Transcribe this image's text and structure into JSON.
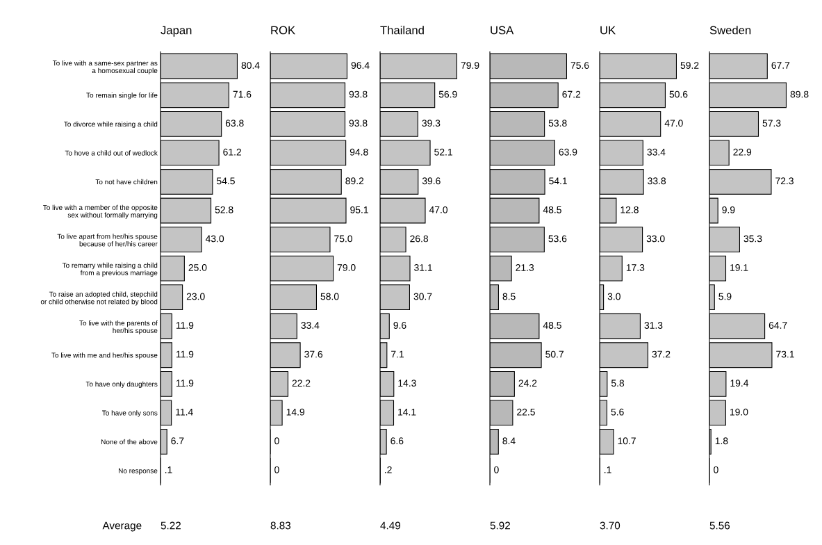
{
  "chart_data": [
    {
      "type": "bar",
      "orientation": "horizontal",
      "title": "Japan",
      "tick_labels": "y",
      "color": "#c4c4c4",
      "categories": [
        "To live with a same-sex partner as\na homosexual couple",
        "To remain single for life",
        "To divorce while raising a child",
        "To hove a child out of wedlock",
        "To not have children",
        "To live with a member of the opposite\nsex without formally marrying",
        "To live apart from her/his spouse\nbecause of her/his career",
        "To remarry while raising a child\nfrom a previous marriage",
        "To raise an adopted child, stepchild\nor child otherwise not related by blood",
        "To live with the parents of\nher/his spouse",
        "To live with me and her/his spouse",
        "To have only daughters",
        "To have only sons",
        "None of the above",
        "No response"
      ],
      "values": [
        80.4,
        71.6,
        63.8,
        61.2,
        54.5,
        52.8,
        43.0,
        25.0,
        23.0,
        11.9,
        11.9,
        11.9,
        11.4,
        6.7,
        0.1
      ],
      "value_labels": [
        "80.4",
        "71.6",
        "63.8",
        "61.2",
        "54.5",
        "52.8",
        "43.0",
        "25.0",
        "23.0",
        "11.9",
        "11.9",
        "11.9",
        "11.4",
        "6.7",
        ".1"
      ],
      "annotations": [
        "Average",
        "5.22"
      ]
    },
    {
      "type": "bar",
      "orientation": "horizontal",
      "title": "ROK",
      "tick_labels": false,
      "color": "#c4c4c4",
      "categories": [
        null,
        null,
        null,
        null,
        null,
        null,
        null,
        null,
        null,
        null,
        null,
        null,
        null,
        null,
        null
      ],
      "values": [
        96.4,
        93.8,
        93.8,
        94.8,
        89.2,
        95.1,
        75.0,
        79.0,
        58.0,
        33.4,
        37.6,
        22.2,
        14.9,
        0,
        0
      ],
      "value_labels": [
        "96.4",
        "93.8",
        "93.8",
        "94.8",
        "89.2",
        "95.1",
        "75.0",
        "79.0",
        "58.0",
        "33.4",
        "37.6",
        "22.2",
        "14.9",
        "0",
        "0"
      ],
      "annotations": [
        "8.83"
      ]
    },
    {
      "type": "bar",
      "orientation": "horizontal",
      "title": "Thailand",
      "tick_labels": false,
      "color": "#c4c4c4",
      "categories": [
        null,
        null,
        null,
        null,
        null,
        null,
        null,
        null,
        null,
        null,
        null,
        null,
        null,
        null,
        null
      ],
      "values": [
        79.9,
        56.9,
        39.3,
        52.1,
        39.6,
        47.0,
        26.8,
        31.1,
        30.7,
        9.6,
        7.1,
        14.3,
        14.1,
        6.6,
        0.2
      ],
      "value_labels": [
        "79.9",
        "56.9",
        "39.3",
        "52.1",
        "39.6",
        "47.0",
        "26.8",
        "31.1",
        "30.7",
        "9.6",
        "7.1",
        "14.3",
        "14.1",
        "6.6",
        ".2"
      ],
      "annotations": [
        "4.49"
      ]
    },
    {
      "type": "bar",
      "orientation": "horizontal",
      "title": "USA",
      "tick_labels": false,
      "color": "#b8b8b8",
      "categories": [
        null,
        null,
        null,
        null,
        null,
        null,
        null,
        null,
        null,
        null,
        null,
        null,
        null,
        null,
        null
      ],
      "values": [
        75.6,
        67.2,
        53.8,
        63.9,
        54.1,
        48.5,
        53.6,
        21.3,
        8.5,
        48.5,
        50.7,
        24.2,
        22.5,
        8.4,
        0
      ],
      "value_labels": [
        "75.6",
        "67.2",
        "53.8",
        "63.9",
        "54.1",
        "48.5",
        "53.6",
        "21.3",
        "8.5",
        "48.5",
        "50.7",
        "24.2",
        "22.5",
        "8.4",
        "0"
      ],
      "annotations": [
        "5.92"
      ]
    },
    {
      "type": "bar",
      "orientation": "horizontal",
      "title": "UK",
      "tick_labels": false,
      "color": "#c4c4c4",
      "categories": [
        null,
        null,
        null,
        null,
        null,
        null,
        null,
        null,
        null,
        null,
        null,
        null,
        null,
        null,
        null
      ],
      "values": [
        59.2,
        50.6,
        47.0,
        33.4,
        33.8,
        12.8,
        33.0,
        17.3,
        3.0,
        31.3,
        37.2,
        5.8,
        5.6,
        10.7,
        0.1
      ],
      "value_labels": [
        "59.2",
        "50.6",
        "47.0",
        "33.4",
        "33.8",
        "12.8",
        "33.0",
        "17.3",
        "3.0",
        "31.3",
        "37.2",
        "5.8",
        "5.6",
        "10.7",
        ".1"
      ],
      "annotations": [
        "3.70"
      ]
    },
    {
      "type": "bar",
      "orientation": "horizontal",
      "title": "Sweden",
      "tick_labels": false,
      "color": "#c4c4c4",
      "categories": [
        null,
        null,
        null,
        null,
        null,
        null,
        null,
        null,
        null,
        null,
        null,
        null,
        null,
        null,
        null
      ],
      "values": [
        67.7,
        89.8,
        57.3,
        22.9,
        72.3,
        9.9,
        35.3,
        19.1,
        5.9,
        64.7,
        73.1,
        19.4,
        19.0,
        1.8,
        0
      ],
      "value_labels": [
        "67.7",
        "89.8",
        "57.3",
        "22.9",
        "72.3",
        "9.9",
        "35.3",
        "19.1",
        "5.9",
        "64.7",
        "73.1",
        "19.4",
        "19.0",
        "1.8",
        "0"
      ],
      "annotations": [
        "5.56"
      ]
    }
  ]
}
